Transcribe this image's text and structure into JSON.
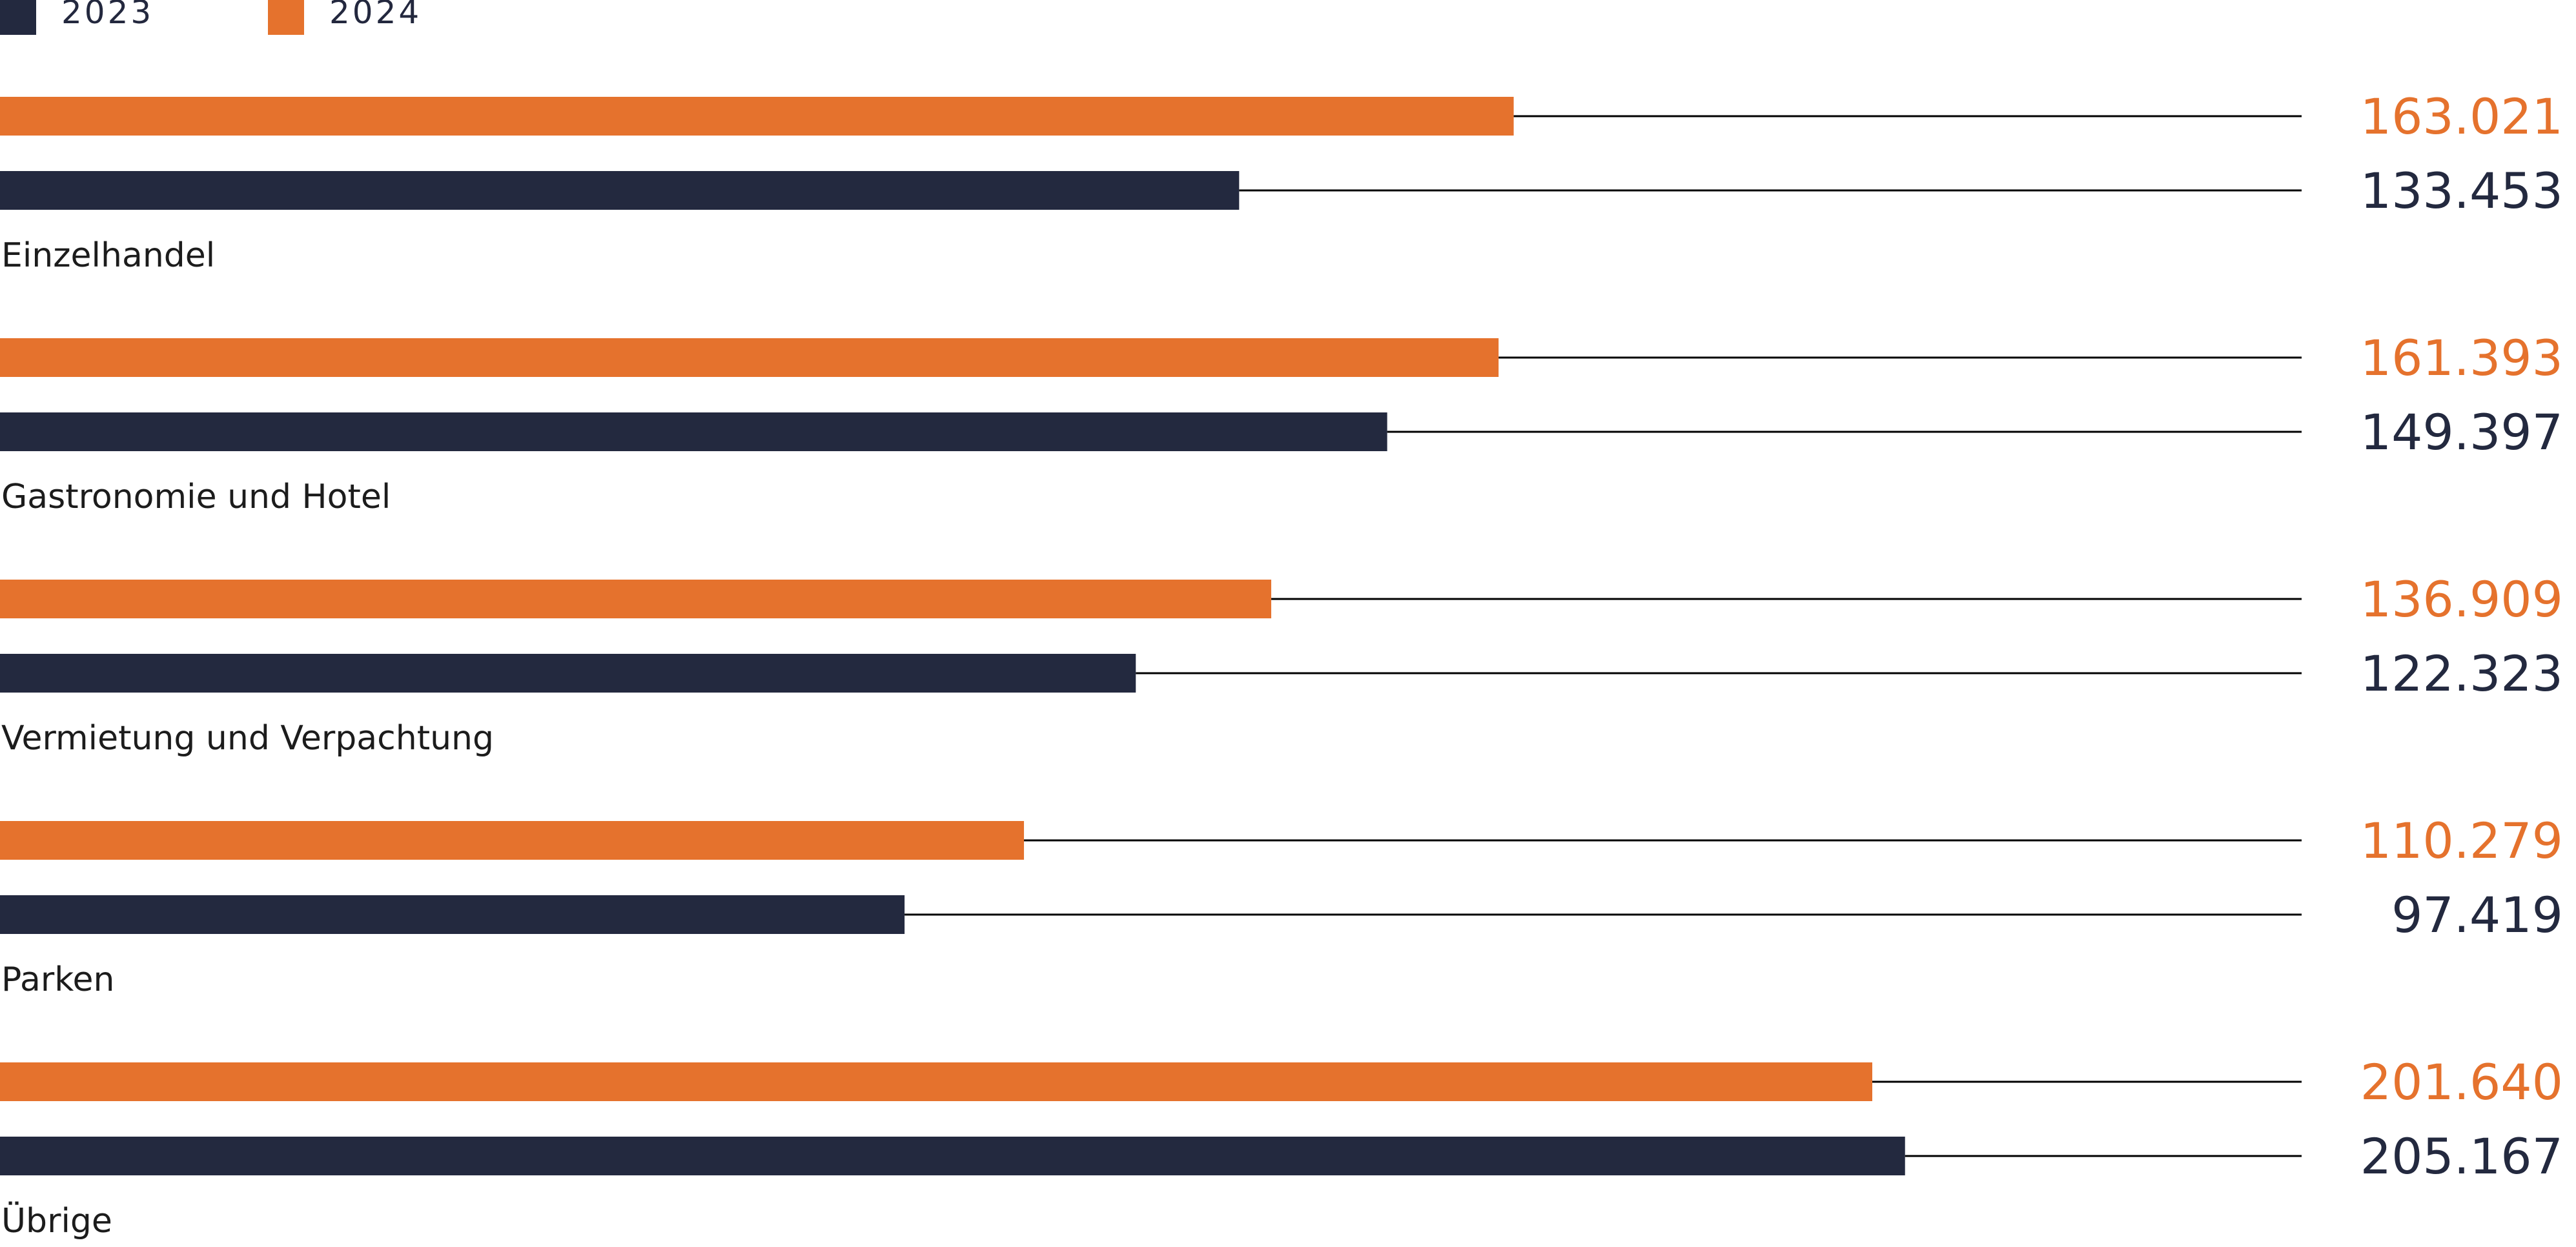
{
  "colors": {
    "2023": "#23293f",
    "2024": "#e5722d",
    "leader": "#000000"
  },
  "legend": [
    {
      "label": "2023",
      "color_key": "2023"
    },
    {
      "label": "2024",
      "color_key": "2024"
    }
  ],
  "chart_data": {
    "type": "bar",
    "orientation": "horizontal",
    "categories": [
      "Einzelhandel",
      "Gastronomie und Hotel",
      "Vermietung und Verpachtung",
      "Parken",
      "Übrige"
    ],
    "series": [
      {
        "name": "2024",
        "values": [
          163021,
          161393,
          136909,
          110279,
          201640
        ],
        "value_labels": [
          "163.021",
          "161.393",
          "136.909",
          "110.279",
          "201.640"
        ]
      },
      {
        "name": "2023",
        "values": [
          133453,
          149397,
          122323,
          97419,
          205167
        ],
        "value_labels": [
          "133.453",
          "149.397",
          "122.323",
          "97.419",
          "205.167"
        ]
      }
    ],
    "xlim": [
      0,
      250000
    ],
    "legend_position": "top-left",
    "grid": false
  }
}
